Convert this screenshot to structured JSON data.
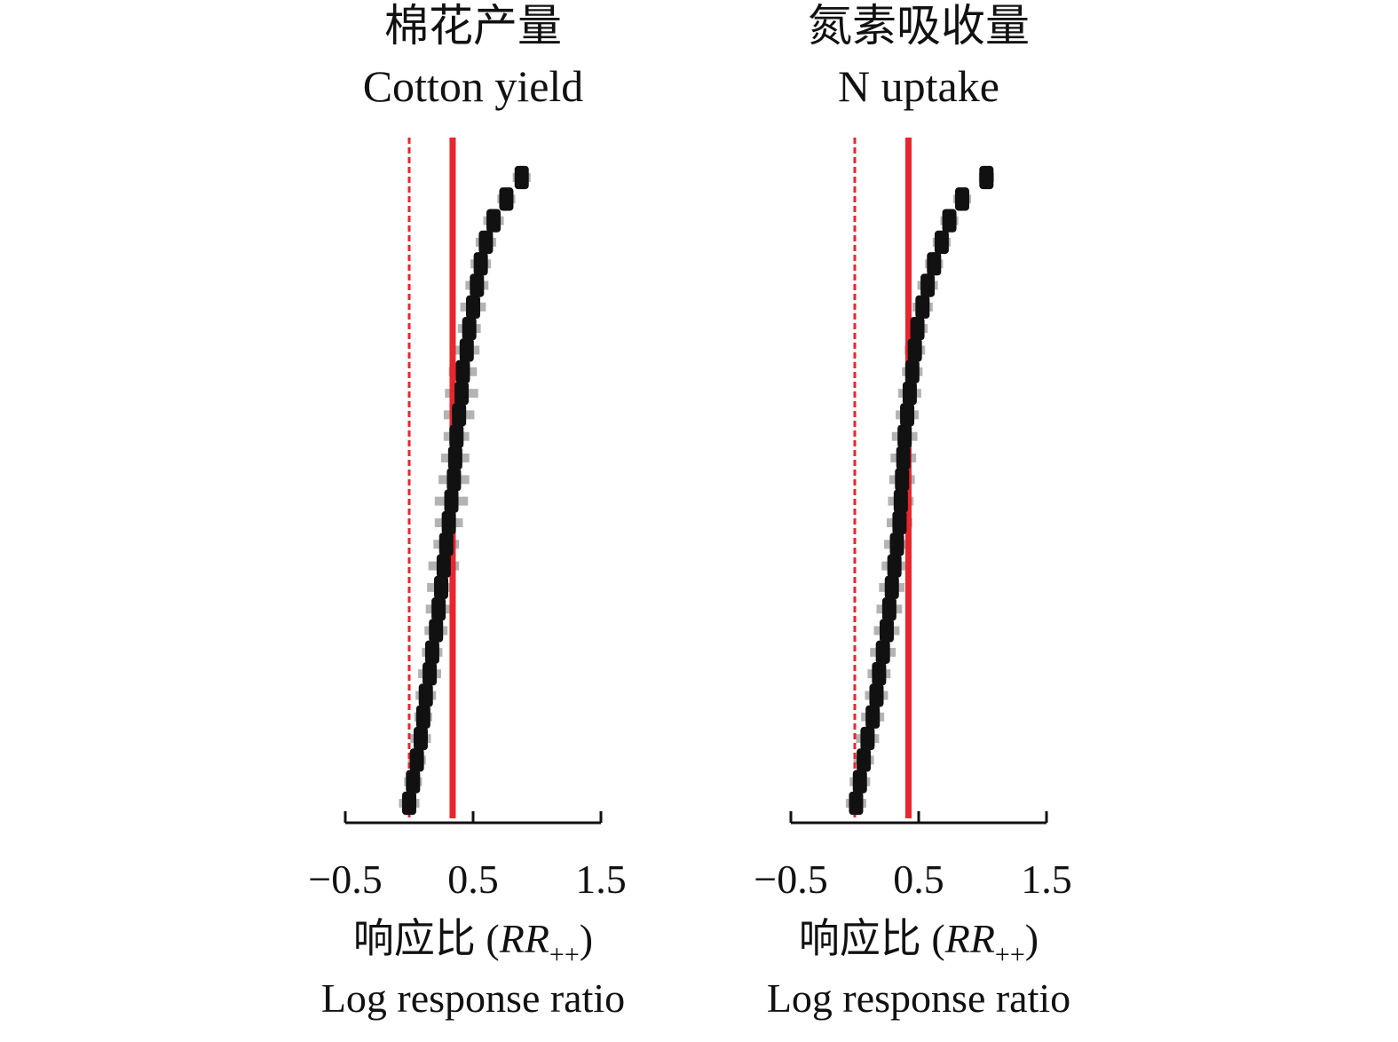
{
  "chart_data": [
    {
      "type": "cumulative-forest",
      "title": "棉花产量",
      "subtitle": "Cotton yield",
      "xlabel": {
        "text": "响应比 (",
        "italic": "RR",
        "subscript": "++",
        "close": ")"
      },
      "xlabel2": "Log response ratio",
      "xlim": [
        -0.5,
        1.5
      ],
      "xticks": [
        {
          "value": -0.5,
          "label": "−0.5"
        },
        0.5,
        1.5
      ],
      "color": "#111111",
      "error_color": "#b3b3b3",
      "values": [
        0.0,
        0.03,
        0.06,
        0.09,
        0.11,
        0.13,
        0.16,
        0.18,
        0.21,
        0.23,
        0.25,
        0.27,
        0.29,
        0.31,
        0.33,
        0.35,
        0.36,
        0.37,
        0.39,
        0.41,
        0.42,
        0.45,
        0.47,
        0.5,
        0.53,
        0.56,
        0.6,
        0.66,
        0.76,
        0.88
      ],
      "errors": [
        0.08,
        0.07,
        0.07,
        0.08,
        0.07,
        0.08,
        0.09,
        0.08,
        0.09,
        0.1,
        0.11,
        0.12,
        0.1,
        0.11,
        0.13,
        0.12,
        0.11,
        0.1,
        0.12,
        0.13,
        0.11,
        0.1,
        0.09,
        0.1,
        0.09,
        0.08,
        0.08,
        0.08,
        0.07,
        0.07
      ],
      "reference_lines": [
        {
          "value": 0,
          "dashed": true,
          "color": "#e8262d"
        },
        {
          "value": 0.34,
          "dashed": false,
          "color": "#e8262d"
        }
      ]
    },
    {
      "type": "cumulative-forest",
      "title": "氮素吸收量",
      "subtitle": "N uptake",
      "xlabel": {
        "text": "响应比 (",
        "italic": "RR",
        "subscript": "++",
        "close": ")"
      },
      "xlabel2": "Log response ratio",
      "xlim": [
        -0.5,
        1.5
      ],
      "xticks": [
        {
          "value": -0.5,
          "label": "−0.5"
        },
        0.5,
        1.5
      ],
      "color": "#111111",
      "error_color": "#b3b3b3",
      "values": [
        0.01,
        0.04,
        0.07,
        0.1,
        0.14,
        0.17,
        0.19,
        0.22,
        0.25,
        0.27,
        0.29,
        0.31,
        0.33,
        0.35,
        0.36,
        0.37,
        0.38,
        0.39,
        0.41,
        0.43,
        0.45,
        0.47,
        0.49,
        0.53,
        0.57,
        0.62,
        0.68,
        0.74,
        0.84,
        1.03
      ],
      "errors": [
        0.08,
        0.08,
        0.08,
        0.09,
        0.09,
        0.09,
        0.09,
        0.1,
        0.1,
        0.1,
        0.1,
        0.1,
        0.1,
        0.1,
        0.1,
        0.1,
        0.1,
        0.1,
        0.09,
        0.09,
        0.08,
        0.08,
        0.08,
        0.08,
        0.08,
        0.07,
        0.07,
        0.07,
        0.07,
        0.06
      ],
      "reference_lines": [
        {
          "value": 0,
          "dashed": true,
          "color": "#e8262d"
        },
        {
          "value": 0.42,
          "dashed": false,
          "color": "#e8262d"
        }
      ]
    }
  ]
}
